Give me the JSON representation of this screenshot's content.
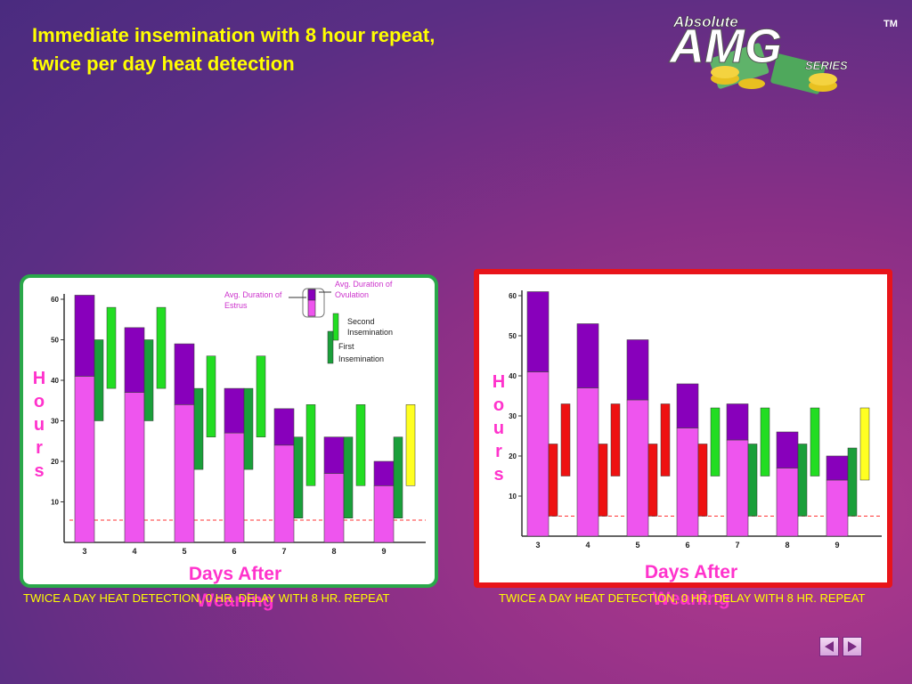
{
  "slide": {
    "title_line1": "Immediate insemination with 8 hour repeat,",
    "title_line2": "twice per day heat detection"
  },
  "logo": {
    "line1": "Absolute",
    "line2": "AMG",
    "line3": "SERIES",
    "tm": "TM"
  },
  "colors": {
    "estrus_fill": "#ee55ee",
    "ovulation_fill": "#8800bb",
    "first_insemination": "#1a9f3a",
    "second_insemination": "#22dd22",
    "late_insemination": "#ffff22",
    "missed_insemination": "#ee1111",
    "threshold_line": "#ff3333"
  },
  "left_panel": {
    "hours_letters": [
      "H",
      "o",
      "u",
      "r",
      "s"
    ],
    "x_title_line1": "Days After",
    "x_title_line2": "Weaning",
    "caption": "TWICE A DAY HEAT DETECTION, 0 HR. DELAY WITH 8 HR. REPEAT",
    "legend": {
      "estrus": "Avg. Duration of Estrus",
      "ovulation": "Avg. Duration of Ovulation",
      "second": "Second Insemination",
      "first": "First Insemination"
    }
  },
  "right_panel": {
    "hours_letters": [
      "H",
      "o",
      "u",
      "r",
      "s"
    ],
    "x_title_line1": "Days After",
    "x_title_line2": "Weaning",
    "caption": "TWICE A DAY HEAT DETECTION, 0 HR. DELAY WITH 8 HR. REPEAT"
  },
  "chart_data": [
    {
      "type": "bar",
      "categories": [
        "3",
        "4",
        "5",
        "6",
        "7",
        "8",
        "9"
      ],
      "yticks": [
        "10",
        "20",
        "30",
        "40",
        "50",
        "60"
      ],
      "ylim": [
        0,
        60
      ],
      "threshold": 5.5,
      "estrus_end": [
        61,
        53,
        49,
        38,
        33,
        26,
        20
      ],
      "ovulation_start": [
        41,
        37,
        34,
        27,
        24,
        17,
        14
      ],
      "first_insemination": [
        [
          30,
          50
        ],
        [
          30,
          50
        ],
        [
          18,
          38
        ],
        [
          18,
          38
        ],
        [
          6,
          26
        ],
        [
          6,
          26
        ],
        [
          6,
          26
        ]
      ],
      "second_insemination": [
        [
          38,
          58
        ],
        [
          38,
          58
        ],
        [
          26,
          46
        ],
        [
          26,
          46
        ],
        [
          14,
          34
        ],
        [
          14,
          34
        ],
        [
          14,
          34
        ]
      ],
      "second_color": [
        "green",
        "green",
        "green",
        "green",
        "green",
        "green",
        "yellow"
      ]
    },
    {
      "type": "bar",
      "categories": [
        "3",
        "4",
        "5",
        "6",
        "7",
        "8",
        "9"
      ],
      "yticks": [
        "10",
        "20",
        "30",
        "40",
        "50",
        "60"
      ],
      "ylim": [
        0,
        60
      ],
      "threshold": 5,
      "estrus_end": [
        61,
        53,
        49,
        38,
        33,
        26,
        20
      ],
      "ovulation_start": [
        41,
        37,
        34,
        27,
        24,
        17,
        14
      ],
      "first_insemination": [
        [
          5,
          23
        ],
        [
          5,
          23
        ],
        [
          5,
          23
        ],
        [
          5,
          23
        ],
        [
          5,
          23
        ],
        [
          5,
          23
        ],
        [
          5,
          22
        ]
      ],
      "second_insemination": [
        [
          15,
          33
        ],
        [
          15,
          33
        ],
        [
          15,
          33
        ],
        [
          15,
          32
        ],
        [
          15,
          32
        ],
        [
          15,
          32
        ],
        [
          14,
          32
        ]
      ],
      "first_color": [
        "red",
        "red",
        "red",
        "red",
        "green",
        "green",
        "green"
      ],
      "second_color": [
        "red",
        "red",
        "red",
        "green",
        "green",
        "green",
        "yellow"
      ]
    }
  ]
}
